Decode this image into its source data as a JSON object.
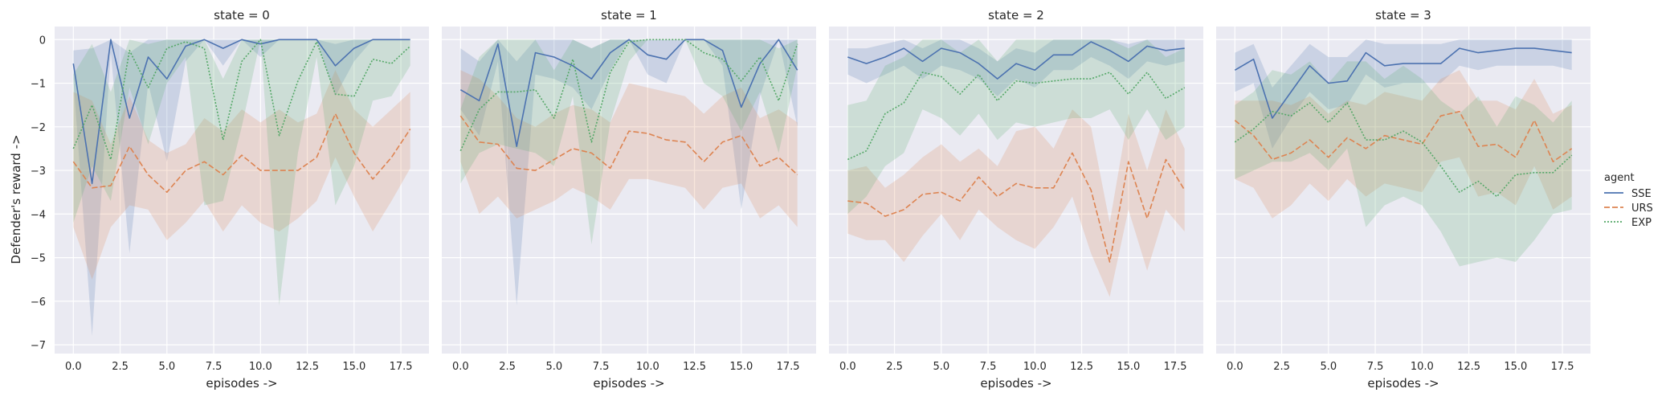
{
  "figure": {
    "ylabel": "Defender's reward ->",
    "xlabel": "episodes ->",
    "legend_title": "agent"
  },
  "colors": {
    "SSE": "#4c72b0",
    "URS": "#dd8452",
    "EXP": "#55a868",
    "panel_bg": "#eaeaf2",
    "grid": "#ffffff"
  },
  "chart_data": [
    {
      "type": "line",
      "title": "state = 0",
      "xlabel": "episodes ->",
      "ylabel": "Defender's reward ->",
      "xlim": [
        -1,
        19
      ],
      "ylim": [
        -7.2,
        0.3
      ],
      "xticks": [
        0.0,
        2.5,
        5.0,
        7.5,
        10.0,
        12.5,
        15.0,
        17.5
      ],
      "xtick_labels": [
        "0.0",
        "2.5",
        "5.0",
        "7.5",
        "10.0",
        "12.5",
        "15.0",
        "17.5"
      ],
      "yticks": [
        0,
        -1,
        -2,
        -3,
        -4,
        -5,
        -6,
        -7
      ],
      "ytick_labels": [
        "0",
        "−1",
        "−2",
        "−3",
        "−4",
        "−5",
        "−6",
        "−7"
      ],
      "grid": true,
      "x": [
        0,
        1,
        2,
        3,
        4,
        5,
        6,
        7,
        8,
        9,
        10,
        11,
        12,
        13,
        14,
        15,
        16,
        17,
        18
      ],
      "series": [
        {
          "name": "SSE",
          "style": "solid",
          "values": [
            -0.55,
            -3.3,
            0.0,
            -1.8,
            -0.4,
            -0.9,
            -0.15,
            0.0,
            -0.2,
            0.0,
            -0.1,
            0.0,
            0.0,
            0.0,
            -0.6,
            -0.2,
            0.0,
            0.0,
            0.0
          ],
          "lower": [
            -0.9,
            -6.8,
            -0.3,
            -4.9,
            -1.0,
            -2.8,
            -0.5,
            0.0,
            -0.6,
            0.0,
            -0.4,
            0.0,
            0.0,
            0.0,
            -1.3,
            -0.5,
            0.0,
            0.0,
            0.0
          ],
          "upper": [
            -0.25,
            -0.2,
            0.0,
            -0.3,
            0.0,
            0.0,
            0.0,
            0.0,
            0.0,
            0.0,
            0.0,
            0.0,
            0.0,
            0.0,
            -0.1,
            0.0,
            0.0,
            0.0,
            0.0
          ]
        },
        {
          "name": "URS",
          "style": "dashed",
          "values": [
            -2.8,
            -3.4,
            -3.35,
            -2.45,
            -3.1,
            -3.5,
            -3.0,
            -2.8,
            -3.1,
            -2.65,
            -3.0,
            -3.0,
            -3.0,
            -2.7,
            -1.7,
            -2.6,
            -3.2,
            -2.7,
            -2.05
          ],
          "lower": [
            -4.3,
            -5.5,
            -4.3,
            -3.8,
            -3.9,
            -4.6,
            -4.2,
            -3.7,
            -4.4,
            -3.8,
            -4.2,
            -4.4,
            -4.1,
            -3.7,
            -2.7,
            -3.6,
            -4.4,
            -3.7,
            -2.95
          ],
          "upper": [
            -1.2,
            -1.4,
            -2.4,
            -1.3,
            -2.3,
            -2.6,
            -2.4,
            -1.8,
            -2.1,
            -1.6,
            -1.9,
            -1.6,
            -1.9,
            -1.7,
            -0.7,
            -1.6,
            -2.0,
            -1.6,
            -1.2
          ]
        },
        {
          "name": "EXP",
          "style": "dotted",
          "values": [
            -2.5,
            -1.5,
            -2.75,
            -0.25,
            -1.1,
            -0.2,
            -0.05,
            -0.2,
            -2.3,
            -0.5,
            0.0,
            -2.2,
            -0.95,
            -0.05,
            -1.25,
            -1.3,
            -0.45,
            -0.55,
            -0.15
          ],
          "lower": [
            -4.2,
            -2.9,
            -3.7,
            -1.1,
            -2.4,
            -1.0,
            -0.4,
            -3.8,
            -3.7,
            -2.0,
            0.0,
            -6.1,
            -2.6,
            -0.4,
            -3.8,
            -2.9,
            -1.4,
            -1.3,
            -0.6
          ],
          "upper": [
            -0.8,
            -0.1,
            -1.2,
            0.0,
            -0.1,
            0.0,
            0.0,
            0.0,
            -0.9,
            0.0,
            0.0,
            0.0,
            0.0,
            0.0,
            0.0,
            0.0,
            0.0,
            0.0,
            0.0
          ]
        }
      ]
    },
    {
      "type": "line",
      "title": "state = 1",
      "xlabel": "episodes ->",
      "xlim": [
        -1,
        19
      ],
      "ylim": [
        -7.2,
        0.3
      ],
      "xticks": [
        0.0,
        2.5,
        5.0,
        7.5,
        10.0,
        12.5,
        15.0,
        17.5
      ],
      "xtick_labels": [
        "0.0",
        "2.5",
        "5.0",
        "7.5",
        "10.0",
        "12.5",
        "15.0",
        "17.5"
      ],
      "grid": true,
      "x": [
        0,
        1,
        2,
        3,
        4,
        5,
        6,
        7,
        8,
        9,
        10,
        11,
        12,
        13,
        14,
        15,
        16,
        17,
        18
      ],
      "series": [
        {
          "name": "SSE",
          "style": "solid",
          "values": [
            -1.15,
            -1.4,
            -0.1,
            -2.45,
            -0.3,
            -0.4,
            -0.6,
            -0.9,
            -0.3,
            0.0,
            -0.35,
            -0.45,
            0.0,
            0.0,
            -0.25,
            -1.55,
            -0.55,
            0.0,
            -0.7
          ],
          "lower": [
            -1.6,
            -2.2,
            -0.5,
            -6.1,
            -0.8,
            -0.9,
            -1.1,
            -1.6,
            -0.7,
            0.0,
            -0.8,
            -1.0,
            0.0,
            0.0,
            -0.6,
            -3.9,
            -1.3,
            0.0,
            -2.0
          ],
          "upper": [
            -0.2,
            -0.5,
            0.0,
            -0.5,
            0.0,
            0.0,
            0.0,
            -0.2,
            0.0,
            0.0,
            0.0,
            0.0,
            0.0,
            0.0,
            0.0,
            0.0,
            0.0,
            0.0,
            0.0
          ]
        },
        {
          "name": "URS",
          "style": "dashed",
          "values": [
            -1.75,
            -2.35,
            -2.4,
            -2.95,
            -3.0,
            -2.75,
            -2.5,
            -2.6,
            -2.95,
            -2.1,
            -2.15,
            -2.3,
            -2.35,
            -2.8,
            -2.35,
            -2.2,
            -2.9,
            -2.7,
            -3.1
          ],
          "lower": [
            -2.8,
            -4.0,
            -3.6,
            -4.1,
            -3.9,
            -3.7,
            -3.4,
            -3.6,
            -3.9,
            -3.2,
            -3.2,
            -3.3,
            -3.4,
            -3.9,
            -3.4,
            -3.3,
            -4.1,
            -3.8,
            -4.3
          ],
          "upper": [
            -0.7,
            -0.9,
            -1.3,
            -1.8,
            -2.0,
            -1.7,
            -1.5,
            -1.6,
            -1.9,
            -1.0,
            -1.1,
            -1.2,
            -1.3,
            -1.7,
            -1.3,
            -1.1,
            -1.8,
            -1.6,
            -1.9
          ]
        },
        {
          "name": "EXP",
          "style": "dotted",
          "values": [
            -2.55,
            -1.6,
            -1.2,
            -1.2,
            -1.15,
            -1.8,
            -0.45,
            -2.35,
            -0.75,
            -0.05,
            0.0,
            0.0,
            0.0,
            -0.3,
            -0.45,
            -0.95,
            -0.4,
            -1.4,
            -0.1
          ],
          "lower": [
            -3.3,
            -2.6,
            -2.4,
            -2.5,
            -2.6,
            -2.9,
            -1.3,
            -4.7,
            -1.9,
            -0.5,
            0.0,
            0.0,
            0.0,
            -1.0,
            -1.3,
            -2.1,
            -1.2,
            -2.6,
            -0.6
          ],
          "upper": [
            -1.6,
            -0.4,
            0.0,
            0.0,
            0.0,
            -0.7,
            0.0,
            -0.2,
            0.0,
            0.0,
            0.0,
            0.0,
            0.0,
            0.0,
            0.0,
            0.0,
            0.0,
            -0.2,
            0.0
          ]
        }
      ]
    },
    {
      "type": "line",
      "title": "state = 2",
      "xlabel": "episodes ->",
      "xlim": [
        -1,
        19
      ],
      "ylim": [
        -7.2,
        0.3
      ],
      "xticks": [
        0.0,
        2.5,
        5.0,
        7.5,
        10.0,
        12.5,
        15.0,
        17.5
      ],
      "xtick_labels": [
        "0.0",
        "2.5",
        "5.0",
        "7.5",
        "10.0",
        "12.5",
        "15.0",
        "17.5"
      ],
      "grid": true,
      "x": [
        0,
        1,
        2,
        3,
        4,
        5,
        6,
        7,
        8,
        9,
        10,
        11,
        12,
        13,
        14,
        15,
        16,
        17,
        18
      ],
      "series": [
        {
          "name": "SSE",
          "style": "solid",
          "values": [
            -0.4,
            -0.55,
            -0.4,
            -0.2,
            -0.5,
            -0.2,
            -0.3,
            -0.55,
            -0.9,
            -0.55,
            -0.7,
            -0.35,
            -0.35,
            -0.05,
            -0.25,
            -0.5,
            -0.15,
            -0.25,
            -0.2
          ],
          "lower": [
            -0.8,
            -1.0,
            -0.8,
            -0.6,
            -0.9,
            -0.6,
            -0.7,
            -0.9,
            -1.3,
            -0.9,
            -1.1,
            -0.7,
            -0.7,
            -0.4,
            -0.6,
            -0.9,
            -0.5,
            -0.6,
            -0.5
          ],
          "upper": [
            -0.2,
            -0.2,
            -0.1,
            0.0,
            -0.2,
            0.0,
            0.0,
            -0.2,
            -0.5,
            -0.2,
            -0.3,
            0.0,
            0.0,
            0.0,
            0.0,
            -0.1,
            0.0,
            0.0,
            0.0
          ]
        },
        {
          "name": "URS",
          "style": "dashed",
          "values": [
            -3.7,
            -3.75,
            -4.05,
            -3.9,
            -3.55,
            -3.5,
            -3.7,
            -3.15,
            -3.6,
            -3.3,
            -3.4,
            -3.4,
            -2.6,
            -3.45,
            -5.1,
            -2.8,
            -4.1,
            -2.75,
            -3.45
          ],
          "lower": [
            -4.45,
            -4.6,
            -4.6,
            -5.1,
            -4.5,
            -4.0,
            -4.6,
            -3.9,
            -4.3,
            -4.6,
            -4.8,
            -4.3,
            -3.6,
            -4.9,
            -5.9,
            -3.9,
            -5.3,
            -3.9,
            -4.4
          ],
          "upper": [
            -3.0,
            -2.9,
            -3.4,
            -3.1,
            -2.7,
            -2.4,
            -2.8,
            -2.5,
            -2.9,
            -2.1,
            -2.0,
            -2.5,
            -1.6,
            -2.0,
            -4.2,
            -1.7,
            -3.0,
            -1.6,
            -2.5
          ]
        },
        {
          "name": "EXP",
          "style": "dotted",
          "values": [
            -2.75,
            -2.55,
            -1.7,
            -1.45,
            -0.75,
            -0.85,
            -1.25,
            -0.8,
            -1.4,
            -0.95,
            -1.0,
            -0.95,
            -0.9,
            -0.9,
            -0.75,
            -1.25,
            -0.75,
            -1.35,
            -1.1
          ],
          "lower": [
            -4.0,
            -3.6,
            -2.9,
            -2.6,
            -1.6,
            -1.8,
            -2.2,
            -1.7,
            -2.3,
            -1.9,
            -2.0,
            -1.9,
            -1.8,
            -1.8,
            -1.6,
            -2.3,
            -1.6,
            -2.3,
            -2.0
          ],
          "upper": [
            -1.5,
            -1.4,
            -0.6,
            -0.4,
            0.0,
            0.0,
            -0.3,
            0.0,
            -0.5,
            0.0,
            0.0,
            0.0,
            0.0,
            0.0,
            0.0,
            -0.2,
            0.0,
            -0.4,
            -0.2
          ]
        }
      ]
    },
    {
      "type": "line",
      "title": "state = 3",
      "xlabel": "episodes ->",
      "xlim": [
        -1,
        19
      ],
      "ylim": [
        -7.2,
        0.3
      ],
      "xticks": [
        0.0,
        2.5,
        5.0,
        7.5,
        10.0,
        12.5,
        15.0,
        17.5
      ],
      "xtick_labels": [
        "0.0",
        "2.5",
        "5.0",
        "7.5",
        "10.0",
        "12.5",
        "15.0",
        "17.5"
      ],
      "grid": true,
      "x": [
        0,
        1,
        2,
        3,
        4,
        5,
        6,
        7,
        8,
        9,
        10,
        11,
        12,
        13,
        14,
        15,
        16,
        17,
        18
      ],
      "series": [
        {
          "name": "SSE",
          "style": "solid",
          "values": [
            -0.7,
            -0.45,
            -1.8,
            -1.2,
            -0.6,
            -1.0,
            -0.95,
            -0.3,
            -0.6,
            -0.55,
            -0.55,
            -0.55,
            -0.2,
            -0.3,
            -0.25,
            -0.2,
            -0.2,
            -0.25,
            -0.3
          ],
          "lower": [
            -1.2,
            -1.0,
            -2.5,
            -1.8,
            -1.2,
            -1.6,
            -1.5,
            -0.8,
            -1.1,
            -1.0,
            -1.0,
            -1.0,
            -0.6,
            -0.7,
            -0.6,
            -0.6,
            -0.6,
            -0.6,
            -0.7
          ],
          "upper": [
            -0.3,
            -0.1,
            -1.1,
            -0.6,
            -0.1,
            -0.4,
            -0.4,
            0.0,
            -0.1,
            -0.1,
            -0.1,
            -0.1,
            0.0,
            0.0,
            0.0,
            0.0,
            0.0,
            0.0,
            0.0
          ]
        },
        {
          "name": "URS",
          "style": "dashed",
          "values": [
            -1.85,
            -2.2,
            -2.75,
            -2.6,
            -2.3,
            -2.7,
            -2.25,
            -2.5,
            -2.2,
            -2.3,
            -2.4,
            -1.75,
            -1.65,
            -2.45,
            -2.4,
            -2.7,
            -1.85,
            -2.8,
            -2.5
          ],
          "lower": [
            -3.2,
            -3.4,
            -4.1,
            -3.8,
            -3.3,
            -3.7,
            -3.2,
            -3.6,
            -3.3,
            -3.4,
            -3.5,
            -2.8,
            -2.7,
            -3.6,
            -3.5,
            -3.8,
            -2.9,
            -3.9,
            -3.6
          ],
          "upper": [
            -1.4,
            -1.4,
            -1.4,
            -1.5,
            -1.3,
            -1.7,
            -1.4,
            -1.5,
            -1.2,
            -1.3,
            -1.4,
            -0.9,
            -0.7,
            -1.4,
            -1.4,
            -1.6,
            -0.9,
            -1.7,
            -1.5
          ]
        },
        {
          "name": "EXP",
          "style": "dotted",
          "values": [
            -2.35,
            -2.05,
            -1.65,
            -1.75,
            -1.45,
            -1.9,
            -1.45,
            -2.3,
            -2.3,
            -2.1,
            -2.35,
            -2.9,
            -3.5,
            -3.25,
            -3.6,
            -3.1,
            -3.05,
            -3.05,
            -2.65
          ],
          "lower": [
            -3.2,
            -3.0,
            -2.8,
            -2.8,
            -2.6,
            -3.0,
            -2.5,
            -4.3,
            -3.8,
            -3.6,
            -3.8,
            -4.4,
            -5.2,
            -5.1,
            -5.0,
            -5.1,
            -4.6,
            -4.0,
            -3.9
          ],
          "upper": [
            -1.5,
            -1.2,
            -0.7,
            -0.8,
            -0.5,
            -1.0,
            -0.5,
            -0.5,
            -0.9,
            -0.6,
            -0.9,
            -1.4,
            -1.7,
            -1.3,
            -2.0,
            -1.3,
            -1.5,
            -1.9,
            -1.4
          ]
        }
      ]
    }
  ],
  "legend": {
    "title": "agent",
    "entries": [
      {
        "name": "SSE",
        "style": "solid"
      },
      {
        "name": "URS",
        "style": "dashed"
      },
      {
        "name": "EXP",
        "style": "dotted"
      }
    ]
  }
}
